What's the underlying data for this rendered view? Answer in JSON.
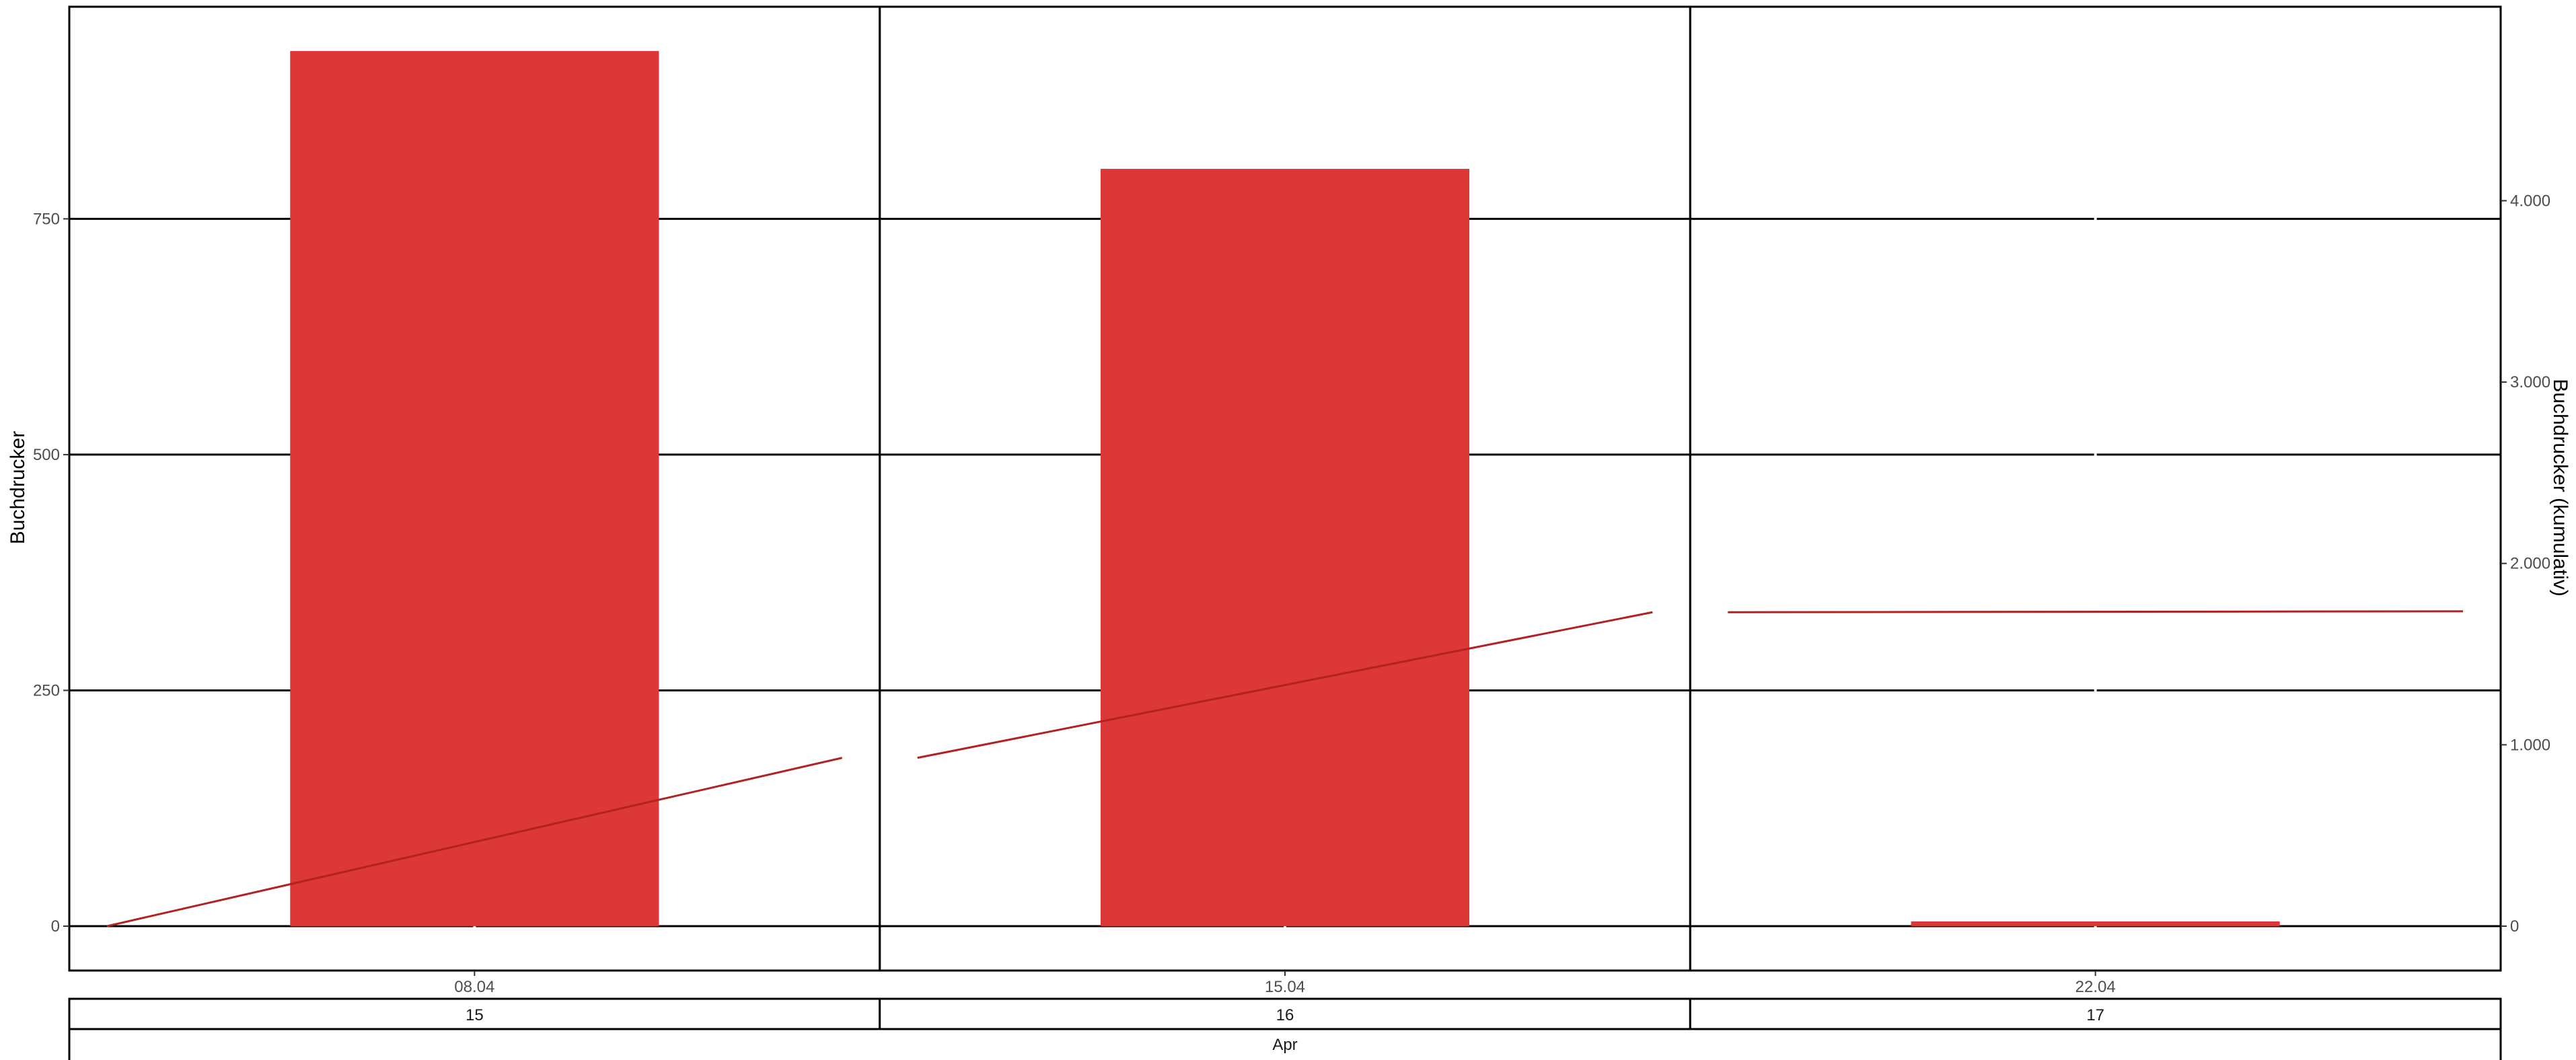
{
  "chart_data": {
    "type": "bar",
    "categories": [
      "08.04",
      "15.04",
      "22.04"
    ],
    "week_labels": [
      "15",
      "16",
      "17"
    ],
    "month_label": "Apr",
    "bar_color": "#dc3838",
    "line_color": "#b22222",
    "ylabel": "Buchdrucker",
    "ylabel_right": "Buchdrucker (kumulativ)",
    "ylim": [
      0,
      930
    ],
    "yticks": [
      0,
      250,
      500,
      750
    ],
    "ytick_labels": [
      "0",
      "250",
      "500",
      "750"
    ],
    "ylim_right": [
      0,
      4836
    ],
    "yticks_right": [
      0,
      1000,
      2000,
      3000,
      4000
    ],
    "ytick_labels_right": [
      "0",
      "1.000",
      "2.000",
      "3.000",
      "4.000"
    ],
    "series": [
      {
        "type": "bar",
        "values": [
          928,
          803,
          5
        ]
      },
      {
        "type": "line",
        "axis": "right",
        "segments": [
          {
            "x": [
              "08.04",
              "15.04"
            ],
            "y": [
              0,
              928
            ]
          },
          {
            "x": [
              "15.04",
              "22.04"
            ],
            "y": [
              928,
              1731
            ]
          },
          {
            "x": [
              "22.04",
              "29.04"
            ],
            "y": [
              1731,
              1736
            ]
          }
        ]
      }
    ],
    "grid": true,
    "legend": "none"
  }
}
